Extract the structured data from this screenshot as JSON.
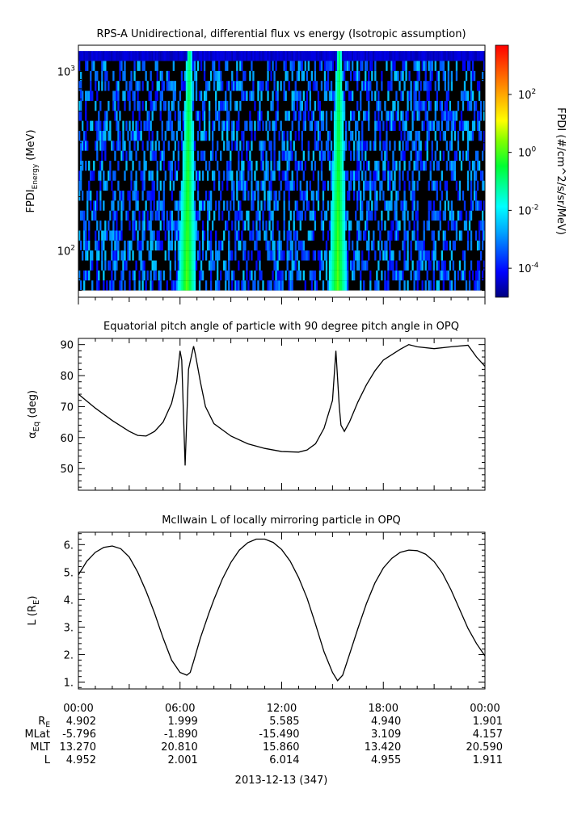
{
  "panels": {
    "spectrogram": {
      "title": "RPS-A Unidirectional, differential flux vs energy (Isotropic assumption)",
      "ylabel_main": "FPDI",
      "ylabel_sub": "Energy",
      "ylabel_unit": " (MeV)",
      "colorbar_label": "FPDI (#/cm^2/s/sr/MeV)"
    },
    "pitch": {
      "title": "Equatorial pitch angle of particle with 90 degree pitch angle in OPQ",
      "ylabel_main": "α",
      "ylabel_sub": "Eq",
      "ylabel_unit": " (deg)"
    },
    "lshell": {
      "title": "McIlwain L of locally mirroring particle in OPQ",
      "ylabel_main": "L (R",
      "ylabel_sub": "E",
      "ylabel_unit": ")"
    }
  },
  "x_axis": {
    "tick_labels": [
      "00:00",
      "06:00",
      "12:00",
      "18:00",
      "00:00"
    ],
    "date_label": "2013-12-13 (347)"
  },
  "ephemeris": {
    "rows": [
      {
        "label": "R",
        "label_sub": "E",
        "values": [
          "4.902",
          "1.999",
          "5.585",
          "4.940",
          "1.901"
        ]
      },
      {
        "label": "MLat",
        "label_sub": "",
        "values": [
          "-5.796",
          "-1.890",
          "-15.490",
          "3.109",
          "4.157"
        ]
      },
      {
        "label": "MLT",
        "label_sub": "",
        "values": [
          "13.270",
          "20.810",
          "15.860",
          "13.420",
          "20.590"
        ]
      },
      {
        "label": "L",
        "label_sub": "",
        "values": [
          "4.952",
          "2.001",
          "6.014",
          "4.955",
          "1.911"
        ]
      }
    ]
  },
  "chart_data": [
    {
      "type": "heatmap",
      "title": "RPS-A Unidirectional, differential flux vs energy (Isotropic assumption)",
      "x_unit": "hours since 2013-12-13 00:00 UT",
      "xlim": [
        0,
        24
      ],
      "ylabel": "FPDI Energy (MeV)",
      "y_scale": "log",
      "ylim": [
        55,
        1400
      ],
      "y_ticks": [
        {
          "value": 100,
          "label": "10^2"
        },
        {
          "value": 1000,
          "label": "10^3"
        }
      ],
      "colorbar": {
        "label": "FPDI (#/cm^2/s/sr/MeV)",
        "scale": "log",
        "range": [
          1e-05,
          5000
        ],
        "ticks": [
          {
            "value": 0.0001,
            "label": "10^-4"
          },
          {
            "value": 0.01,
            "label": "10^-2"
          },
          {
            "value": 1,
            "label": "10^0"
          },
          {
            "value": 100,
            "label": "10^2"
          }
        ],
        "colormap": "rainbow"
      },
      "features": [
        {
          "description": "high-flux band",
          "center_hours": 6.4,
          "flux_max": 1.0
        },
        {
          "description": "high-flux band",
          "center_hours": 15.3,
          "flux_max": 1.0
        },
        {
          "description": "top energy channel saturated blue background",
          "flux": 3e-05
        }
      ]
    },
    {
      "type": "line",
      "title": "Equatorial pitch angle of particle with 90 degree pitch angle in OPQ",
      "ylabel": "αEq (deg)",
      "xlim": [
        0,
        24
      ],
      "ylim": [
        43,
        92
      ],
      "y_ticks": [
        50,
        60,
        70,
        80,
        90
      ],
      "x": [
        0,
        1,
        2,
        3,
        3.5,
        4,
        4.5,
        5,
        5.5,
        5.8,
        6.0,
        6.1,
        6.3,
        6.5,
        6.6,
        6.8,
        6.9,
        7.2,
        7.5,
        8,
        9,
        10,
        11,
        12,
        13,
        13.5,
        14,
        14.5,
        15.0,
        15.2,
        15.4,
        15.5,
        15.7,
        16.0,
        16.5,
        17,
        17.5,
        18,
        19,
        19.5,
        20,
        21,
        22,
        23,
        23.5,
        24
      ],
      "y": [
        74,
        69.5,
        65.5,
        62,
        60.7,
        60.5,
        62,
        65,
        71,
        78,
        88,
        85,
        51,
        82,
        84.5,
        89.5,
        87,
        78,
        70,
        64.5,
        60.5,
        58,
        56.5,
        55.5,
        55.3,
        56,
        58,
        63,
        72,
        88,
        70,
        64,
        62,
        65,
        71.5,
        77,
        81.5,
        85,
        88.5,
        90,
        89.3,
        88.7,
        89.3,
        89.8,
        86,
        83
      ]
    },
    {
      "type": "line",
      "title": "McIlwain L of locally mirroring particle in OPQ",
      "ylabel": "L (RE)",
      "xlim": [
        0,
        24
      ],
      "ylim": [
        0.75,
        6.45
      ],
      "y_ticks": [
        1,
        2,
        3,
        4,
        5,
        6
      ],
      "x": [
        0,
        0.5,
        1,
        1.5,
        2,
        2.5,
        3,
        3.5,
        4,
        4.5,
        5,
        5.5,
        6,
        6.2,
        6.4,
        6.6,
        6.8,
        7.2,
        7.7,
        8,
        8.5,
        9,
        9.5,
        10,
        10.5,
        11,
        11.5,
        12,
        12.5,
        13,
        13.5,
        14,
        14.5,
        15,
        15.3,
        15.6,
        16,
        16.5,
        17,
        17.5,
        18,
        18.5,
        19,
        19.5,
        20,
        20.5,
        21,
        21.5,
        22,
        22.5,
        23,
        23.5,
        24
      ],
      "y": [
        4.9,
        5.4,
        5.72,
        5.9,
        5.95,
        5.85,
        5.55,
        5.0,
        4.3,
        3.5,
        2.6,
        1.8,
        1.35,
        1.3,
        1.25,
        1.35,
        1.75,
        2.6,
        3.5,
        4.0,
        4.75,
        5.35,
        5.8,
        6.07,
        6.2,
        6.2,
        6.08,
        5.82,
        5.4,
        4.8,
        4.05,
        3.1,
        2.1,
        1.35,
        1.05,
        1.25,
        2.0,
        2.95,
        3.85,
        4.6,
        5.15,
        5.5,
        5.72,
        5.8,
        5.78,
        5.65,
        5.38,
        4.95,
        4.35,
        3.65,
        2.95,
        2.4,
        1.95
      ]
    }
  ]
}
